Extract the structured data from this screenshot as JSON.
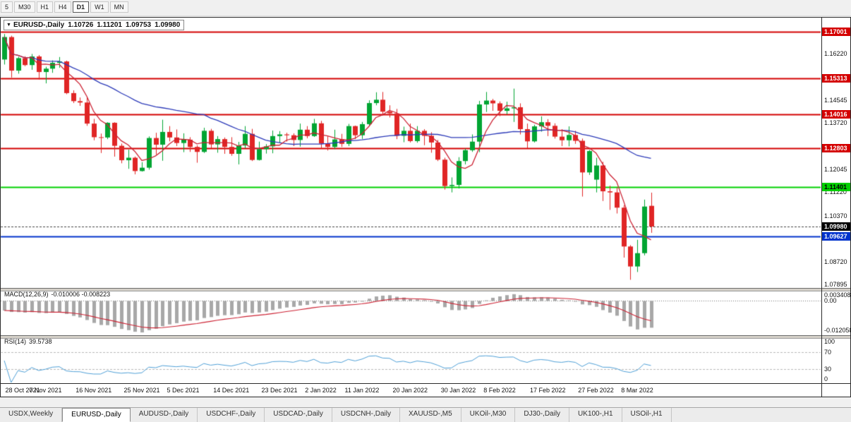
{
  "icons": {
    "expander": "▼"
  },
  "toolbar": {
    "timeframes": [
      {
        "label": "5",
        "active": false
      },
      {
        "label": "M30",
        "active": false
      },
      {
        "label": "H1",
        "active": false
      },
      {
        "label": "H4",
        "active": false
      },
      {
        "label": "D1",
        "active": true
      },
      {
        "label": "W1",
        "active": false
      },
      {
        "label": "MN",
        "active": false
      }
    ]
  },
  "chart_data": {
    "type": "candlestick",
    "symbol_period": "EURUSD-,Daily",
    "title_ohlc": {
      "open": "1.10726",
      "high": "1.11201",
      "low": "1.09753",
      "close": "1.09980"
    },
    "candle_colors": {
      "up": "#00a532",
      "down": "#e02525"
    },
    "candles": [
      [
        1.16,
        1.1692,
        1.1582,
        1.1681
      ],
      [
        1.1681,
        1.1686,
        1.1535,
        1.156
      ],
      [
        1.156,
        1.161,
        1.1549,
        1.1605
      ],
      [
        1.1605,
        1.1612,
        1.1576,
        1.158
      ],
      [
        1.158,
        1.162,
        1.1563,
        1.1611
      ],
      [
        1.1611,
        1.1616,
        1.1528,
        1.1555
      ],
      [
        1.1555,
        1.1574,
        1.1514,
        1.1567
      ],
      [
        1.1567,
        1.1597,
        1.1552,
        1.1588
      ],
      [
        1.1588,
        1.1609,
        1.157,
        1.1593
      ],
      [
        1.1593,
        1.1596,
        1.1475,
        1.1479
      ],
      [
        1.1479,
        1.1489,
        1.1443,
        1.145
      ],
      [
        1.145,
        1.1463,
        1.1433,
        1.1445
      ],
      [
        1.1445,
        1.1464,
        1.1361,
        1.1369
      ],
      [
        1.1369,
        1.1386,
        1.1309,
        1.132
      ],
      [
        1.132,
        1.1333,
        1.1263,
        1.1319
      ],
      [
        1.1319,
        1.1374,
        1.1313,
        1.1372
      ],
      [
        1.1372,
        1.1374,
        1.125,
        1.1289
      ],
      [
        1.1289,
        1.1297,
        1.1226,
        1.1237
      ],
      [
        1.1237,
        1.1275,
        1.1206,
        1.1246
      ],
      [
        1.1246,
        1.125,
        1.1186,
        1.1198
      ],
      [
        1.1198,
        1.123,
        1.1196,
        1.121
      ],
      [
        1.121,
        1.1323,
        1.1203,
        1.1317
      ],
      [
        1.1317,
        1.1336,
        1.1258,
        1.1293
      ],
      [
        1.1293,
        1.1383,
        1.1235,
        1.1339
      ],
      [
        1.1339,
        1.136,
        1.1305,
        1.1319
      ],
      [
        1.1319,
        1.1348,
        1.1288,
        1.1299
      ],
      [
        1.1299,
        1.1334,
        1.1266,
        1.1311
      ],
      [
        1.1311,
        1.132,
        1.1267,
        1.1285
      ],
      [
        1.1285,
        1.1291,
        1.1228,
        1.1267
      ],
      [
        1.1267,
        1.1354,
        1.1263,
        1.1343
      ],
      [
        1.1343,
        1.135,
        1.128,
        1.1294
      ],
      [
        1.1294,
        1.1324,
        1.1264,
        1.1313
      ],
      [
        1.1313,
        1.1319,
        1.126,
        1.1285
      ],
      [
        1.1285,
        1.132,
        1.1253,
        1.126
      ],
      [
        1.126,
        1.1303,
        1.1222,
        1.129
      ],
      [
        1.129,
        1.136,
        1.128,
        1.1332
      ],
      [
        1.1332,
        1.135,
        1.1234,
        1.1238
      ],
      [
        1.1238,
        1.1304,
        1.1236,
        1.1277
      ],
      [
        1.1277,
        1.1295,
        1.1261,
        1.1287
      ],
      [
        1.1287,
        1.1344,
        1.1262,
        1.1324
      ],
      [
        1.1324,
        1.1342,
        1.13,
        1.133
      ],
      [
        1.133,
        1.1336,
        1.1304,
        1.1327
      ],
      [
        1.1327,
        1.1334,
        1.1288,
        1.131
      ],
      [
        1.131,
        1.1369,
        1.1286,
        1.1347
      ],
      [
        1.1347,
        1.136,
        1.1316,
        1.1324
      ],
      [
        1.1324,
        1.1386,
        1.1321,
        1.137
      ],
      [
        1.137,
        1.1379,
        1.1279,
        1.1297
      ],
      [
        1.1297,
        1.1323,
        1.1272,
        1.1285
      ],
      [
        1.1285,
        1.1347,
        1.1277,
        1.1312
      ],
      [
        1.1312,
        1.1332,
        1.1285,
        1.1296
      ],
      [
        1.1296,
        1.1368,
        1.1288,
        1.136
      ],
      [
        1.136,
        1.1362,
        1.1313,
        1.1327
      ],
      [
        1.1327,
        1.1375,
        1.1314,
        1.1367
      ],
      [
        1.1367,
        1.1453,
        1.136,
        1.1443
      ],
      [
        1.1443,
        1.1482,
        1.1435,
        1.1455
      ],
      [
        1.1455,
        1.1483,
        1.1398,
        1.1412
      ],
      [
        1.1412,
        1.1435,
        1.1391,
        1.1406
      ],
      [
        1.1406,
        1.1422,
        1.1313,
        1.1325
      ],
      [
        1.1325,
        1.1358,
        1.1302,
        1.1343
      ],
      [
        1.1343,
        1.1369,
        1.1301,
        1.1306
      ],
      [
        1.1306,
        1.136,
        1.13,
        1.1343
      ],
      [
        1.1343,
        1.1349,
        1.1291,
        1.1325
      ],
      [
        1.1325,
        1.1338,
        1.1264,
        1.1301
      ],
      [
        1.1301,
        1.131,
        1.1234,
        1.1239
      ],
      [
        1.1239,
        1.1246,
        1.1131,
        1.1144
      ],
      [
        1.1144,
        1.1175,
        1.1121,
        1.1148
      ],
      [
        1.1148,
        1.1248,
        1.1135,
        1.1234
      ],
      [
        1.1234,
        1.1279,
        1.1222,
        1.1273
      ],
      [
        1.1273,
        1.133,
        1.1267,
        1.1304
      ],
      [
        1.1304,
        1.1451,
        1.1266,
        1.1438
      ],
      [
        1.1438,
        1.1483,
        1.1411,
        1.1452
      ],
      [
        1.1452,
        1.1458,
        1.1415,
        1.1442
      ],
      [
        1.1442,
        1.1449,
        1.1396,
        1.1415
      ],
      [
        1.1415,
        1.1448,
        1.1402,
        1.1424
      ],
      [
        1.1424,
        1.1495,
        1.1375,
        1.1428
      ],
      [
        1.1428,
        1.1442,
        1.133,
        1.1349
      ],
      [
        1.1349,
        1.1369,
        1.128,
        1.1305
      ],
      [
        1.1305,
        1.1365,
        1.1301,
        1.1359
      ],
      [
        1.1359,
        1.1395,
        1.134,
        1.1374
      ],
      [
        1.1374,
        1.1385,
        1.1324,
        1.1361
      ],
      [
        1.1361,
        1.137,
        1.1315,
        1.1322
      ],
      [
        1.1322,
        1.1349,
        1.1288,
        1.1309
      ],
      [
        1.1309,
        1.1359,
        1.1287,
        1.1328
      ],
      [
        1.1328,
        1.1343,
        1.1296,
        1.1307
      ],
      [
        1.1307,
        1.1315,
        1.1106,
        1.1193
      ],
      [
        1.1193,
        1.1274,
        1.1184,
        1.127
      ],
      [
        1.1167,
        1.1246,
        1.1121,
        1.1218
      ],
      [
        1.1218,
        1.1231,
        1.109,
        1.1125
      ],
      [
        1.1125,
        1.1145,
        1.1058,
        1.1121
      ],
      [
        1.1121,
        1.1139,
        1.1045,
        1.1066
      ],
      [
        1.1066,
        1.1075,
        1.0886,
        1.0926
      ],
      [
        1.0926,
        1.0931,
        1.0806,
        1.0854
      ],
      [
        1.0854,
        1.095,
        1.0834,
        1.0902
      ],
      [
        1.0902,
        1.1095,
        1.0894,
        1.107
      ],
      [
        1.10726,
        1.11201,
        1.09753,
        1.0998
      ]
    ],
    "date_labels": [
      {
        "label": "28 Oct 2021",
        "idx": 0
      },
      {
        "label": "7 Nov 2021",
        "idx": 6
      },
      {
        "label": "16 Nov 2021",
        "idx": 13
      },
      {
        "label": "25 Nov 2021",
        "idx": 20
      },
      {
        "label": "5 Dec 2021",
        "idx": 26
      },
      {
        "label": "14 Dec 2021",
        "idx": 33
      },
      {
        "label": "23 Dec 2021",
        "idx": 40
      },
      {
        "label": "2 Jan 2022",
        "idx": 46
      },
      {
        "label": "11 Jan 2022",
        "idx": 52
      },
      {
        "label": "20 Jan 2022",
        "idx": 59
      },
      {
        "label": "30 Jan 2022",
        "idx": 66
      },
      {
        "label": "8 Feb 2022",
        "idx": 72
      },
      {
        "label": "17 Feb 2022",
        "idx": 79
      },
      {
        "label": "27 Feb 2022",
        "idx": 86
      },
      {
        "label": "8 Mar 2022",
        "idx": 92
      }
    ],
    "price_ticks": [
      "1.16220",
      "1.14545",
      "1.13720",
      "1.12045",
      "1.11220",
      "1.10370",
      "1.08720",
      "1.07895"
    ],
    "hlines": [
      {
        "price": 1.17001,
        "label": "1.17001",
        "color": "#d40000",
        "badge_text": "#ffffff",
        "width": 2
      },
      {
        "price": 1.15313,
        "label": "1.15313",
        "color": "#d40000",
        "badge_text": "#ffffff",
        "width": 2
      },
      {
        "price": 1.14016,
        "label": "1.14016",
        "color": "#d40000",
        "badge_text": "#ffffff",
        "width": 2
      },
      {
        "price": 1.12803,
        "label": "1.12803",
        "color": "#d40000",
        "badge_text": "#ffffff",
        "width": 2
      },
      {
        "price": 1.11401,
        "label": "1.11401",
        "color": "#00d000",
        "badge_text": "#000000",
        "width": 2
      },
      {
        "price": 1.09627,
        "label": "1.09627",
        "color": "#0033cc",
        "badge_text": "#ffffff",
        "width": 2
      }
    ],
    "current_price": {
      "price": 1.0998,
      "label": "1.09980",
      "badge_bg": "#000000",
      "badge_text": "#ffffff",
      "line_color": "#444444"
    },
    "moving_averages": [
      {
        "name": "ma-slow",
        "window": 30,
        "color": "#2c3ab8"
      },
      {
        "name": "ma-fast",
        "window": 5,
        "color": "#cc2233"
      }
    ],
    "indicators": {
      "macd": {
        "label": "MACD(12,26,9)",
        "values_text": "-0.010006 -0.008223",
        "fast": 12,
        "slow": 26,
        "signal": 9,
        "axis_labels": [
          "0.003408",
          "0.00",
          "-0.012058"
        ],
        "range": [
          -0.012058,
          0.003408
        ],
        "histogram_color": "#a8a8a8",
        "signal_color": "#cc2233",
        "zero_line_color": "#707070"
      },
      "rsi": {
        "label": "RSI(14)",
        "value_text": "39.5738",
        "period": 14,
        "axis_labels": [
          "100",
          "70",
          "30",
          "0"
        ],
        "levels": [
          70,
          30
        ],
        "line_color": "#4e9fd6",
        "level_color": "#b8b8b8"
      }
    }
  },
  "tabs": [
    {
      "label": "USDX,Weekly",
      "active": false
    },
    {
      "label": "EURUSD-,Daily",
      "active": true
    },
    {
      "label": "AUDUSD-,Daily",
      "active": false
    },
    {
      "label": "USDCHF-,Daily",
      "active": false
    },
    {
      "label": "USDCAD-,Daily",
      "active": false
    },
    {
      "label": "USDCNH-,Daily",
      "active": false
    },
    {
      "label": "XAUUSD-,M5",
      "active": false
    },
    {
      "label": "UKOil-,M30",
      "active": false
    },
    {
      "label": "DJ30-,Daily",
      "active": false
    },
    {
      "label": "UK100-,H1",
      "active": false
    },
    {
      "label": "USOil-,H1",
      "active": false
    }
  ]
}
